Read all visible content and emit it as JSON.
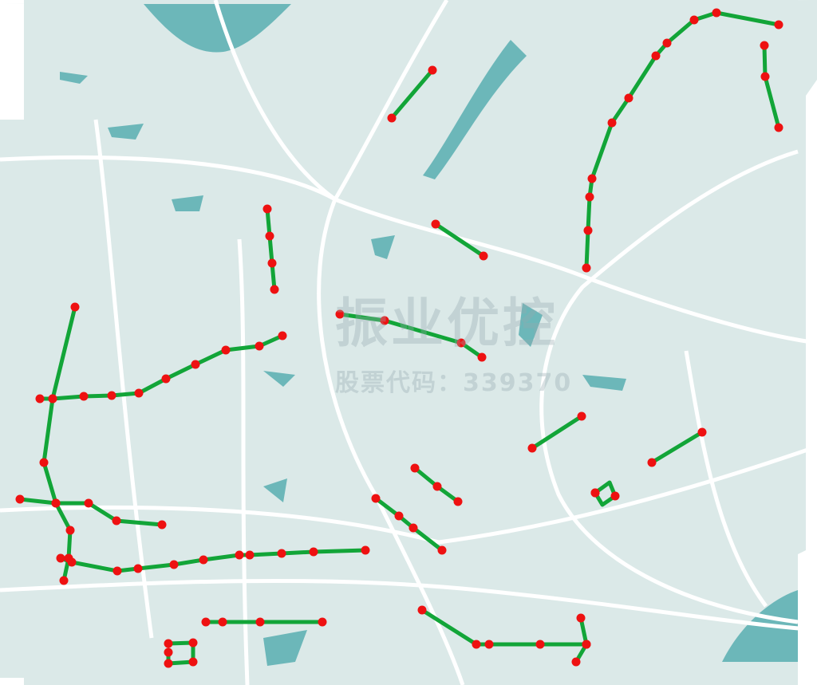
{
  "map": {
    "colors": {
      "land": "#dbe9e8",
      "road": "#ffffff",
      "water": "#6cb7b9",
      "route": "#12a538",
      "stop": "#ee1111"
    },
    "watermark": {
      "title": "振业优控",
      "subtitle": "股票代码：339370"
    }
  }
}
